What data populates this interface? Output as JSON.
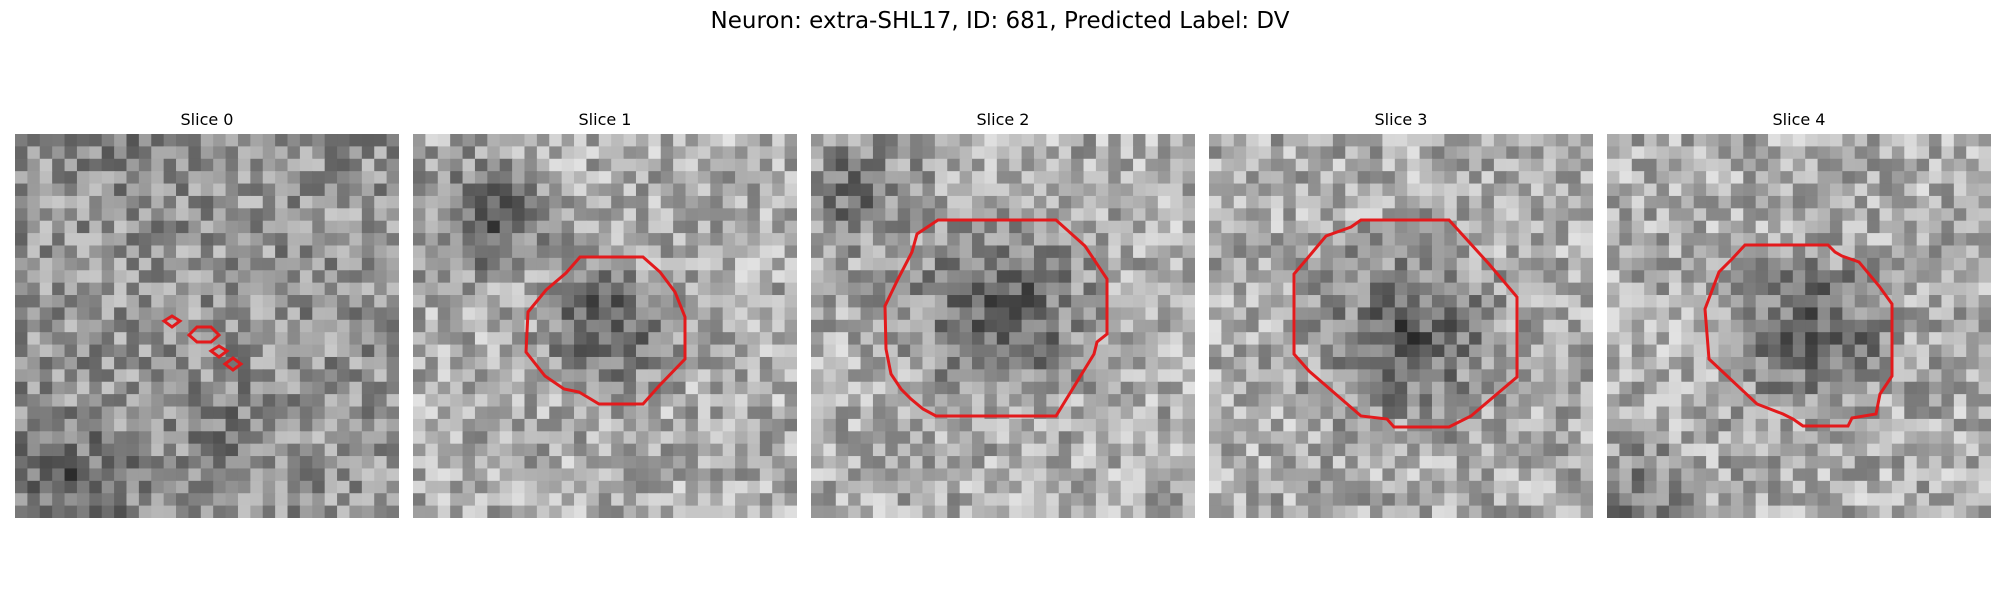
{
  "figure": {
    "title": "Neuron: extra-SHL17, ID: 681, Predicted Label: DV",
    "contour_color": "#e31a1c",
    "colormap": "gray"
  },
  "panels": [
    {
      "title": "Slice 0"
    },
    {
      "title": "Slice 1"
    },
    {
      "title": "Slice 2"
    },
    {
      "title": "Slice 3"
    },
    {
      "title": "Slice 4"
    }
  ]
}
